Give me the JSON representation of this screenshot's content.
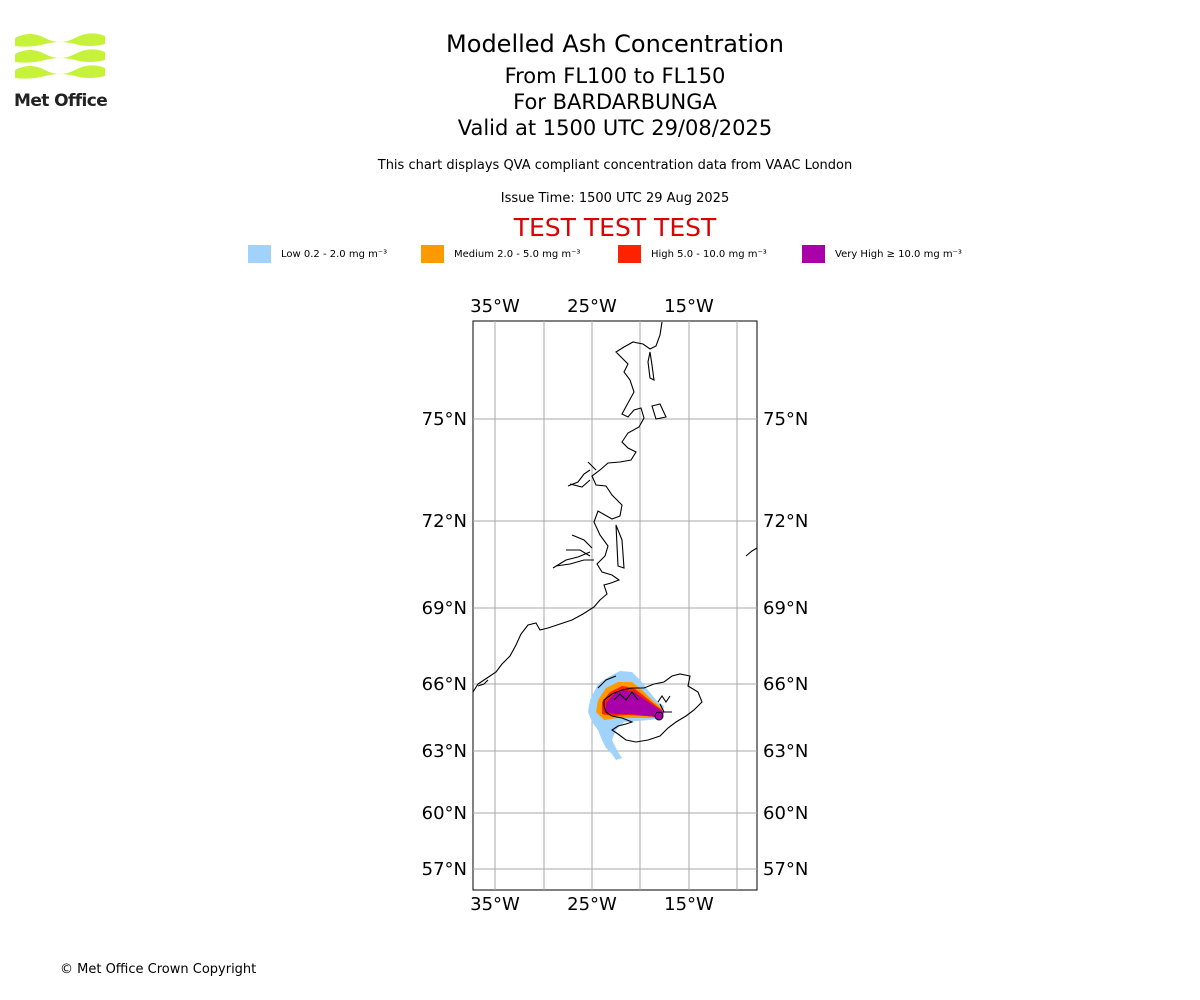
{
  "logo": {
    "text": "Met Office"
  },
  "title": {
    "main": "Modelled Ash Concentration",
    "levels": "From FL100 to FL150",
    "volcano": "For BARDARBUNGA",
    "valid": "Valid at 1500 UTC 29/08/2025"
  },
  "subtitle": "This chart displays QVA compliant concentration data from VAAC London",
  "issue_time": "Issue Time: 1500 UTC 29 Aug 2025",
  "test_banner": "TEST TEST TEST",
  "legend": [
    {
      "label": "Low 0.2 - 2.0 mg m⁻³",
      "color": "#a0d2fa"
    },
    {
      "label": "Medium 2.0 - 5.0 mg m⁻³",
      "color": "#ff9900"
    },
    {
      "label": "High 5.0 - 10.0 mg m⁻³",
      "color": "#ff2200"
    },
    {
      "label": "Very High ≥ 10.0 mg m⁻³",
      "color": "#aa00aa"
    }
  ],
  "map": {
    "lon_labels": [
      "35°W",
      "25°W",
      "15°W"
    ],
    "lat_labels": [
      "75°N",
      "72°N",
      "69°N",
      "66°N",
      "63°N",
      "60°N",
      "57°N"
    ]
  },
  "copyright": "© Met Office Crown Copyright"
}
